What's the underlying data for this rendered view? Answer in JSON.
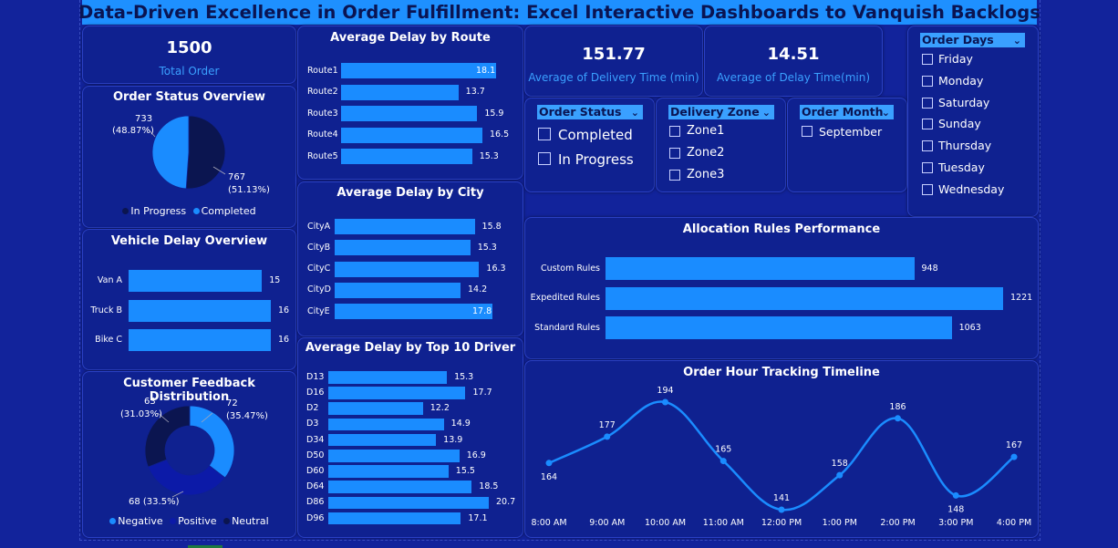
{
  "title": "Data-Driven Excellence in Order Fulfillment: Excel Interactive Dashboards to Vanquish Backlogs",
  "colors": {
    "background": "#12239b",
    "card": "#0f2190",
    "accent": "#1a8cff",
    "title_bar": "#1e90ff",
    "dark_series": "#0b1550",
    "positive": "#0c1aa8"
  },
  "kpis": {
    "total_order": {
      "value": "1500",
      "label": "Total Order"
    },
    "avg_delivery": {
      "value": "151.77",
      "label": "Average of Delivery Time (min)"
    },
    "avg_delay": {
      "value": "14.51",
      "label": "Average of Delay Time(min)"
    }
  },
  "order_status_overview": {
    "title": "Order Status Overview",
    "slice1_value": "733",
    "slice1_pct": "(48.87%)",
    "slice2_value": "767",
    "slice2_pct": "(51.13%)",
    "legend_in_progress": "In Progress",
    "legend_completed": "Completed"
  },
  "vehicle_delay": {
    "title": "Vehicle Delay Overview"
  },
  "customer_feedback": {
    "title": "Customer Feedback Distribution",
    "l1_value": "63",
    "l1_pct": "(31.03%)",
    "l2_value": "72",
    "l2_pct": "(35.47%)",
    "l3_text": "68 (33.5%)",
    "legend_negative": "Negative",
    "legend_positive": "Positive",
    "legend_neutral": "Neutral"
  },
  "route_chart": {
    "title": "Average Delay by Route"
  },
  "city_chart": {
    "title": "Average Delay by City"
  },
  "driver_chart": {
    "title": "Average Delay by Top 10 Driver"
  },
  "allocation_chart": {
    "title": "Allocation Rules Performance"
  },
  "timeline_chart": {
    "title": "Order Hour Tracking Timeline"
  },
  "slicers": {
    "order_status": {
      "header": "Order Status",
      "items": [
        "Completed",
        "In Progress"
      ]
    },
    "delivery_zone": {
      "header": "Delivery Zone",
      "items": [
        "Zone1",
        "Zone2",
        "Zone3"
      ]
    },
    "order_month": {
      "header": "Order Month",
      "items": [
        "September"
      ]
    },
    "order_days": {
      "header": "Order Days",
      "items": [
        "Friday",
        "Monday",
        "Saturday",
        "Sunday",
        "Thursday",
        "Tuesday",
        "Wednesday"
      ]
    }
  },
  "chart_data": [
    {
      "type": "pie",
      "labels": [
        "In Progress",
        "Completed"
      ],
      "values": [
        767,
        733
      ],
      "percents": [
        "51.13%",
        "48.87%"
      ]
    },
    {
      "type": "bar",
      "orientation": "horizontal",
      "categories": [
        "Van A",
        "Truck B",
        "Bike C"
      ],
      "values": [
        15,
        16,
        16
      ]
    },
    {
      "type": "pie",
      "donut": true,
      "labels": [
        "Negative",
        "Positive",
        "Neutral"
      ],
      "values": [
        72,
        68,
        63
      ],
      "percents": [
        "35.47%",
        "33.5%",
        "31.03%"
      ]
    },
    {
      "type": "bar",
      "orientation": "horizontal",
      "title": "Average Delay by Route",
      "categories": [
        "Route1",
        "Route2",
        "Route3",
        "Route4",
        "Route5"
      ],
      "values": [
        18.1,
        13.7,
        15.9,
        16.5,
        15.3
      ]
    },
    {
      "type": "bar",
      "orientation": "horizontal",
      "title": "Average Delay by City",
      "categories": [
        "CityA",
        "CityB",
        "CityC",
        "CityD",
        "CityE"
      ],
      "values": [
        15.8,
        15.3,
        16.3,
        14.2,
        17.8
      ]
    },
    {
      "type": "bar",
      "orientation": "horizontal",
      "title": "Average Delay by Top 10 Driver",
      "categories": [
        "D13",
        "D16",
        "D2",
        "D3",
        "D34",
        "D50",
        "D60",
        "D64",
        "D86",
        "D96"
      ],
      "values": [
        15.3,
        17.7,
        12.2,
        14.9,
        13.9,
        16.9,
        15.5,
        18.5,
        20.7,
        17.1
      ]
    },
    {
      "type": "bar",
      "orientation": "horizontal",
      "title": "Allocation Rules Performance",
      "categories": [
        "Custom Rules",
        "Expedited Rules",
        "Standard Rules"
      ],
      "values": [
        948,
        1221,
        1063
      ]
    },
    {
      "type": "line",
      "title": "Order Hour Tracking Timeline",
      "x": [
        "8:00 AM",
        "9:00 AM",
        "10:00 AM",
        "11:00 AM",
        "12:00 PM",
        "1:00 PM",
        "2:00 PM",
        "3:00 PM",
        "4:00 PM"
      ],
      "values": [
        164,
        177,
        194,
        165,
        141,
        158,
        186,
        148,
        167
      ]
    }
  ]
}
